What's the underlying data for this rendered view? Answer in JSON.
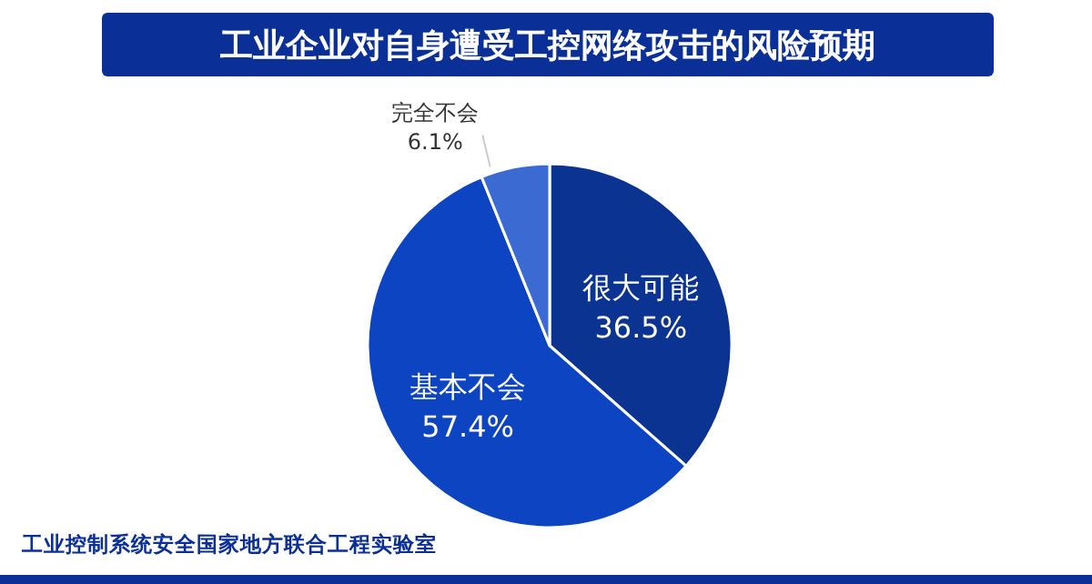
{
  "chart_data": {
    "type": "pie",
    "title": "工业企业对自身遭受工控网络攻击的风险预期",
    "categories": [
      "很大可能",
      "基本不会",
      "完全不会"
    ],
    "values": [
      36.5,
      57.4,
      6.1
    ],
    "value_labels": [
      "36.5%",
      "57.4%",
      "6.1%"
    ],
    "colors": [
      "#0b3391",
      "#0d44c2",
      "#3b6ad2"
    ],
    "annotations": [
      "工业控制系统安全国家地方联合工程实验室"
    ]
  }
}
